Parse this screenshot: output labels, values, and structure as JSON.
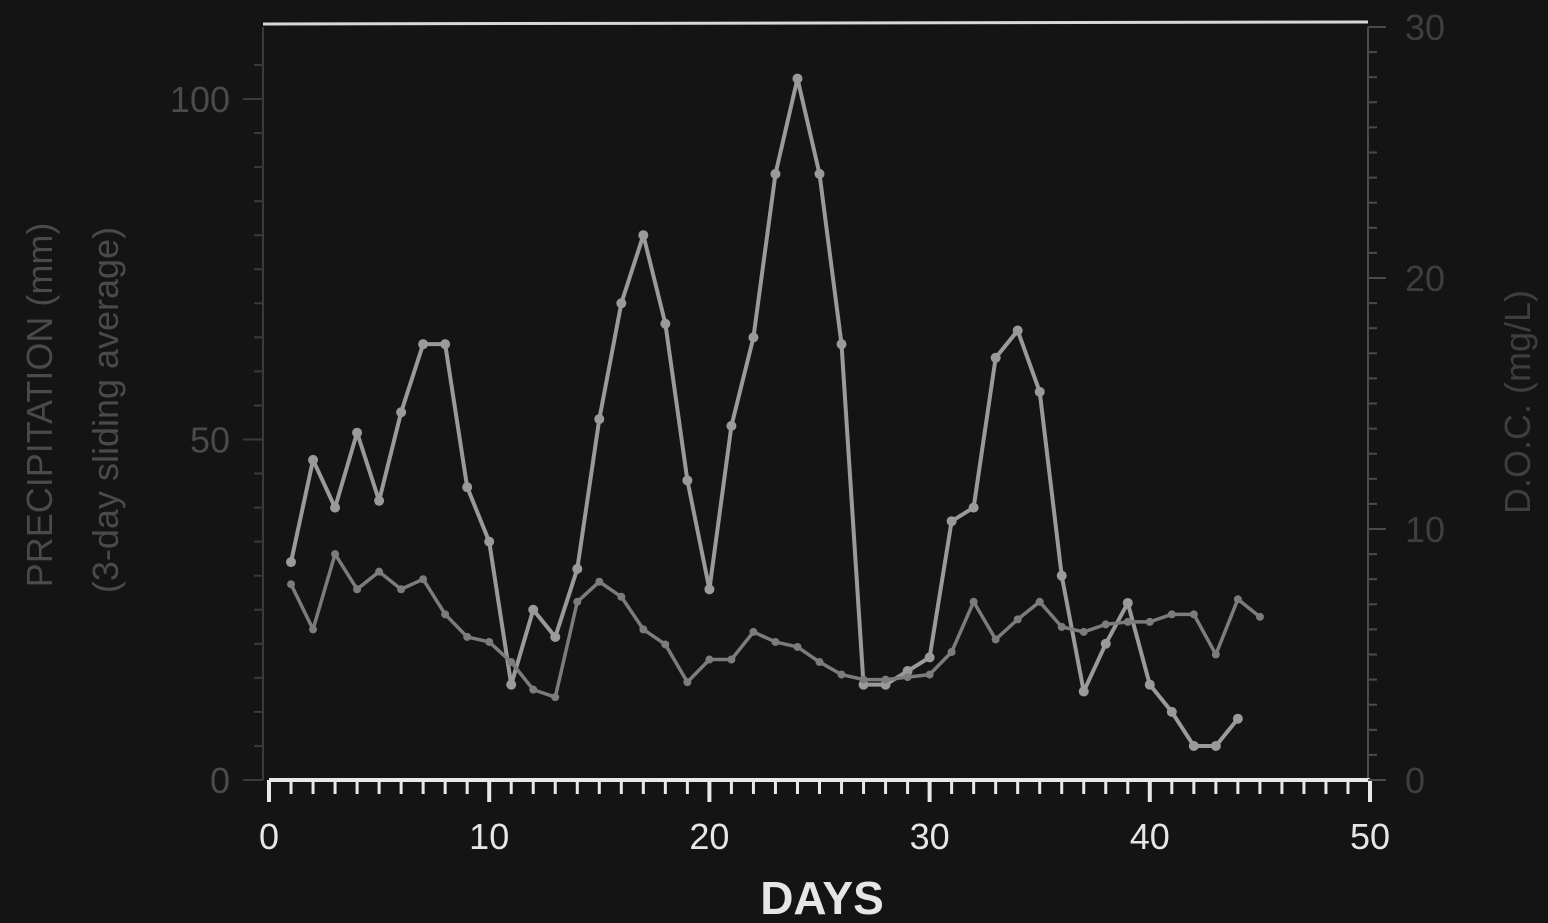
{
  "colors": {
    "background": "#141414",
    "frame_top": "#d8d8d8",
    "bottom_axis": "#e8e8e8",
    "left_axis": "#3a3a3a",
    "right_axis": "#4a4a4a",
    "left_labels": "#4a4a4a",
    "right_labels": "#3e3e3e",
    "bottom_labels": "#e6e6e6",
    "series_precip": "#9a9a9a",
    "series_doc": "#7c7c7c"
  },
  "chart_data": {
    "type": "line",
    "xlabel": "DAYS",
    "ylabel": [
      "PRECIPITATION (mm)",
      "(3-day sliding average)"
    ],
    "y2label": "D.O.C. (mg/L)",
    "xlim": [
      0,
      50
    ],
    "ylim": [
      0,
      100
    ],
    "y2lim": [
      0,
      30
    ],
    "x_ticks": [
      "0",
      "10",
      "20",
      "30",
      "40",
      "50"
    ],
    "y_ticks": [
      "0",
      "50",
      "100"
    ],
    "y2_ticks": [
      "0",
      "10",
      "20",
      "30"
    ],
    "grid": false,
    "legend": "none",
    "series": [
      {
        "axis": "left",
        "x": [
          1,
          2,
          3,
          4,
          5,
          6,
          7,
          8,
          9,
          10,
          11,
          12,
          13,
          14,
          15,
          16,
          17,
          18,
          19,
          20,
          21,
          22,
          23,
          24,
          25,
          26,
          27,
          28,
          29,
          30,
          31,
          32,
          33,
          34,
          35,
          36,
          37,
          38,
          39,
          40,
          41,
          42,
          43,
          44
        ],
        "values": [
          32,
          47,
          40,
          51,
          41,
          54,
          64,
          64,
          43,
          35,
          14,
          25,
          21,
          31,
          53,
          70,
          80,
          67,
          44,
          28,
          52,
          65,
          89,
          103,
          89,
          64,
          14,
          14,
          16,
          18,
          38,
          40,
          62,
          66,
          57,
          30,
          13,
          20,
          26,
          14,
          10,
          5,
          5,
          9
        ]
      },
      {
        "axis": "right",
        "x": [
          1,
          2,
          3,
          4,
          5,
          6,
          7,
          8,
          9,
          10,
          11,
          12,
          13,
          14,
          15,
          16,
          17,
          18,
          19,
          20,
          21,
          22,
          23,
          24,
          25,
          26,
          27,
          28,
          29,
          30,
          31,
          32,
          33,
          34,
          35,
          36,
          37,
          38,
          39,
          40,
          41,
          42,
          43,
          44,
          45
        ],
        "values": [
          7.8,
          6.0,
          9.0,
          7.6,
          8.3,
          7.6,
          8.0,
          6.6,
          5.7,
          5.5,
          4.7,
          3.6,
          3.3,
          7.1,
          7.9,
          7.3,
          6.0,
          5.4,
          3.9,
          4.8,
          4.8,
          5.9,
          5.5,
          5.3,
          4.7,
          4.2,
          4.0,
          4.0,
          4.1,
          4.2,
          5.1,
          7.1,
          5.6,
          6.4,
          7.1,
          6.1,
          5.9,
          6.2,
          6.3,
          6.3,
          6.6,
          6.6,
          5.0,
          7.2,
          6.5
        ]
      }
    ]
  }
}
